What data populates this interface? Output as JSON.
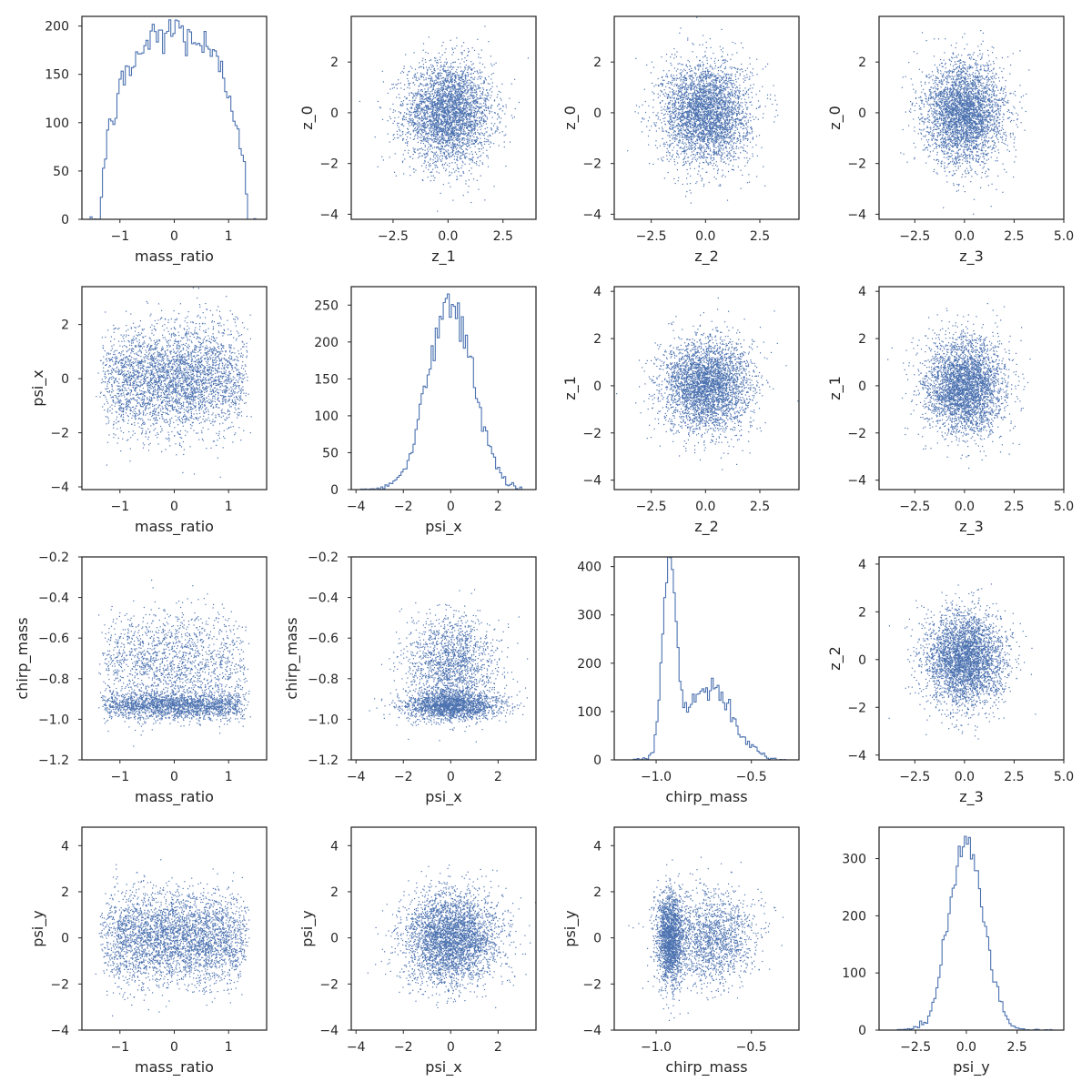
{
  "chart_data": {
    "type": "pairplot",
    "description_variables": [
      "mass_ratio",
      "psi_x",
      "chirp_mass",
      "psi_y",
      "z_0",
      "z_1",
      "z_2",
      "z_3"
    ],
    "color": "#4c72b0",
    "panels": [
      {
        "id": "p-0-0",
        "row": 0,
        "col": 0,
        "type": "hist",
        "xlabel": "mass_ratio",
        "ylabel": "",
        "xlim": [
          -1.7,
          1.7
        ],
        "ylim": [
          0,
          210
        ],
        "xticks": [
          -1,
          0,
          1
        ],
        "xtick_labels": [
          "−1",
          "0",
          "1"
        ],
        "yticks": [
          0,
          50,
          100,
          150,
          200
        ],
        "ytick_labels": [
          "0",
          "50",
          "100",
          "150",
          "200"
        ],
        "dist": {
          "kind": "mass",
          "center": 0.0,
          "half_width": 1.35,
          "peak": 195
        },
        "bins": [
          -1.55,
          1.5
        ]
      },
      {
        "id": "p-0-1",
        "row": 0,
        "col": 1,
        "type": "scatter",
        "xlabel": "z_1",
        "ylabel": "z_0",
        "xlim": [
          -4.4,
          4.0
        ],
        "ylim": [
          -4.2,
          3.8
        ],
        "xticks": [
          -2.5,
          0,
          2.5
        ],
        "xtick_labels": [
          "−2.5",
          "0.0",
          "2.5"
        ],
        "yticks": [
          -4,
          -2,
          0,
          2
        ],
        "ytick_labels": [
          "−4",
          "−2",
          "0",
          "2"
        ],
        "x_dist": "normal",
        "y_dist": "normal"
      },
      {
        "id": "p-0-2",
        "row": 0,
        "col": 2,
        "type": "scatter",
        "xlabel": "z_2",
        "ylabel": "z_0",
        "xlim": [
          -4.2,
          4.3
        ],
        "ylim": [
          -4.2,
          3.8
        ],
        "xticks": [
          -2.5,
          0,
          2.5
        ],
        "xtick_labels": [
          "−2.5",
          "0.0",
          "2.5"
        ],
        "yticks": [
          -4,
          -2,
          0,
          2
        ],
        "ytick_labels": [
          "−4",
          "−2",
          "0",
          "2"
        ],
        "x_dist": "normal",
        "y_dist": "normal"
      },
      {
        "id": "p-0-3",
        "row": 0,
        "col": 3,
        "type": "scatter",
        "xlabel": "z_3",
        "ylabel": "z_0",
        "xlim": [
          -4.3,
          5.0
        ],
        "ylim": [
          -4.2,
          3.8
        ],
        "xticks": [
          -2.5,
          0,
          2.5,
          5
        ],
        "xtick_labels": [
          "−2.5",
          "0.0",
          "2.5",
          "5.0"
        ],
        "yticks": [
          -4,
          -2,
          0,
          2
        ],
        "ytick_labels": [
          "−4",
          "−2",
          "0",
          "2"
        ],
        "x_dist": "normal",
        "y_dist": "normal"
      },
      {
        "id": "p-1-0",
        "row": 1,
        "col": 0,
        "type": "scatter",
        "xlabel": "mass_ratio",
        "ylabel": "psi_x",
        "xlim": [
          -1.7,
          1.7
        ],
        "ylim": [
          -4.1,
          3.4
        ],
        "xticks": [
          -1,
          0,
          1
        ],
        "xtick_labels": [
          "−1",
          "0",
          "1"
        ],
        "yticks": [
          -4,
          -2,
          0,
          2
        ],
        "ytick_labels": [
          "−4",
          "−2",
          "0",
          "2"
        ],
        "x_dist": "mass",
        "y_dist": "normal"
      },
      {
        "id": "p-1-1",
        "row": 1,
        "col": 1,
        "type": "hist",
        "xlabel": "psi_x",
        "ylabel": "",
        "xlim": [
          -4.2,
          3.6
        ],
        "ylim": [
          0,
          275
        ],
        "xticks": [
          -4,
          -2,
          0,
          2
        ],
        "xtick_labels": [
          "−4",
          "−2",
          "0",
          "2"
        ],
        "yticks": [
          0,
          50,
          100,
          150,
          200,
          250
        ],
        "ytick_labels": [
          "0",
          "50",
          "100",
          "150",
          "200",
          "250"
        ],
        "dist": {
          "kind": "normal",
          "mu": 0.0,
          "sigma": 0.95,
          "peak": 255
        },
        "bins": [
          -3.8,
          3.0
        ]
      },
      {
        "id": "p-1-2",
        "row": 1,
        "col": 2,
        "type": "scatter",
        "xlabel": "z_2",
        "ylabel": "z_1",
        "xlim": [
          -4.2,
          4.3
        ],
        "ylim": [
          -4.4,
          4.2
        ],
        "xticks": [
          -2.5,
          0,
          2.5
        ],
        "xtick_labels": [
          "−2.5",
          "0.0",
          "2.5"
        ],
        "yticks": [
          -4,
          -2,
          0,
          2,
          4
        ],
        "ytick_labels": [
          "−4",
          "−2",
          "0",
          "2",
          "4"
        ],
        "x_dist": "normal",
        "y_dist": "normal"
      },
      {
        "id": "p-1-3",
        "row": 1,
        "col": 3,
        "type": "scatter",
        "xlabel": "z_3",
        "ylabel": "z_1",
        "xlim": [
          -4.3,
          5.0
        ],
        "ylim": [
          -4.4,
          4.2
        ],
        "xticks": [
          -2.5,
          0,
          2.5,
          5
        ],
        "xtick_labels": [
          "−2.5",
          "0.0",
          "2.5",
          "5.0"
        ],
        "yticks": [
          -4,
          -2,
          0,
          2,
          4
        ],
        "ytick_labels": [
          "−4",
          "−2",
          "0",
          "2",
          "4"
        ],
        "x_dist": "normal",
        "y_dist": "normal"
      },
      {
        "id": "p-2-0",
        "row": 2,
        "col": 0,
        "type": "scatter",
        "xlabel": "mass_ratio",
        "ylabel": "chirp_mass",
        "xlim": [
          -1.7,
          1.7
        ],
        "ylim": [
          -1.2,
          -0.2
        ],
        "xticks": [
          -1,
          0,
          1
        ],
        "xtick_labels": [
          "−1",
          "0",
          "1"
        ],
        "yticks": [
          -1.2,
          -1.0,
          -0.8,
          -0.6,
          -0.4,
          -0.2
        ],
        "ytick_labels": [
          "−1.2",
          "−1.0",
          "−0.8",
          "−0.6",
          "−0.4",
          "−0.2"
        ],
        "x_dist": "mass",
        "y_dist": "chirp"
      },
      {
        "id": "p-2-1",
        "row": 2,
        "col": 1,
        "type": "scatter",
        "xlabel": "psi_x",
        "ylabel": "chirp_mass",
        "xlim": [
          -4.2,
          3.6
        ],
        "ylim": [
          -1.2,
          -0.2
        ],
        "xticks": [
          -4,
          -2,
          0,
          2
        ],
        "xtick_labels": [
          "−4",
          "−2",
          "0",
          "2"
        ],
        "yticks": [
          -1.2,
          -1.0,
          -0.8,
          -0.6,
          -0.4,
          -0.2
        ],
        "ytick_labels": [
          "−1.2",
          "−1.0",
          "−0.8",
          "−0.6",
          "−0.4",
          "−0.2"
        ],
        "x_dist": "normal",
        "y_dist": "chirp"
      },
      {
        "id": "p-2-2",
        "row": 2,
        "col": 2,
        "type": "hist",
        "xlabel": "chirp_mass",
        "ylabel": "",
        "xlim": [
          -1.22,
          -0.25
        ],
        "ylim": [
          0,
          420
        ],
        "xticks": [
          -1.0,
          -0.5
        ],
        "xtick_labels": [
          "−1.0",
          "−0.5"
        ],
        "yticks": [
          0,
          100,
          200,
          300,
          400
        ],
        "ytick_labels": [
          "0",
          "100",
          "200",
          "300",
          "400"
        ],
        "dist": {
          "kind": "chirp",
          "peak": 395
        },
        "bins": [
          -1.12,
          -0.32
        ]
      },
      {
        "id": "p-2-3",
        "row": 2,
        "col": 3,
        "type": "scatter",
        "xlabel": "z_3",
        "ylabel": "z_2",
        "xlim": [
          -4.3,
          5.0
        ],
        "ylim": [
          -4.2,
          4.3
        ],
        "xticks": [
          -2.5,
          0,
          2.5,
          5
        ],
        "xtick_labels": [
          "−2.5",
          "0.0",
          "2.5",
          "5.0"
        ],
        "yticks": [
          -4,
          -2,
          0,
          2,
          4
        ],
        "ytick_labels": [
          "−4",
          "−2",
          "0",
          "2",
          "4"
        ],
        "x_dist": "normal",
        "y_dist": "normal"
      },
      {
        "id": "p-3-0",
        "row": 3,
        "col": 0,
        "type": "scatter",
        "xlabel": "mass_ratio",
        "ylabel": "psi_y",
        "xlim": [
          -1.7,
          1.7
        ],
        "ylim": [
          -4.0,
          4.8
        ],
        "xticks": [
          -1,
          0,
          1
        ],
        "xtick_labels": [
          "−1",
          "0",
          "1"
        ],
        "yticks": [
          -4,
          -2,
          0,
          2,
          4
        ],
        "ytick_labels": [
          "−4",
          "−2",
          "0",
          "2",
          "4"
        ],
        "x_dist": "mass",
        "y_dist": "normal"
      },
      {
        "id": "p-3-1",
        "row": 3,
        "col": 1,
        "type": "scatter",
        "xlabel": "psi_x",
        "ylabel": "psi_y",
        "xlim": [
          -4.2,
          3.6
        ],
        "ylim": [
          -4.0,
          4.8
        ],
        "xticks": [
          -4,
          -2,
          0,
          2
        ],
        "xtick_labels": [
          "−4",
          "−2",
          "0",
          "2"
        ],
        "yticks": [
          -4,
          -2,
          0,
          2,
          4
        ],
        "ytick_labels": [
          "−4",
          "−2",
          "0",
          "2",
          "4"
        ],
        "x_dist": "normal",
        "y_dist": "normal"
      },
      {
        "id": "p-3-2",
        "row": 3,
        "col": 2,
        "type": "scatter",
        "xlabel": "chirp_mass",
        "ylabel": "psi_y",
        "xlim": [
          -1.22,
          -0.25
        ],
        "ylim": [
          -4.0,
          4.8
        ],
        "xticks": [
          -1.0,
          -0.5
        ],
        "xtick_labels": [
          "−1.0",
          "−0.5"
        ],
        "yticks": [
          -4,
          -2,
          0,
          2,
          4
        ],
        "ytick_labels": [
          "−4",
          "−2",
          "0",
          "2",
          "4"
        ],
        "x_dist": "chirp",
        "y_dist": "normal"
      },
      {
        "id": "p-3-3",
        "row": 3,
        "col": 3,
        "type": "hist",
        "xlabel": "psi_y",
        "ylabel": "",
        "xlim": [
          -4.3,
          4.8
        ],
        "ylim": [
          0,
          355
        ],
        "xticks": [
          -2.5,
          0,
          2.5
        ],
        "xtick_labels": [
          "−2.5",
          "0.0",
          "2.5"
        ],
        "yticks": [
          0,
          100,
          200,
          300
        ],
        "ytick_labels": [
          "0",
          "100",
          "200",
          "300"
        ],
        "dist": {
          "kind": "normal",
          "mu": 0.0,
          "sigma": 0.85,
          "peak": 330
        },
        "bins": [
          -3.5,
          4.5
        ]
      }
    ]
  }
}
